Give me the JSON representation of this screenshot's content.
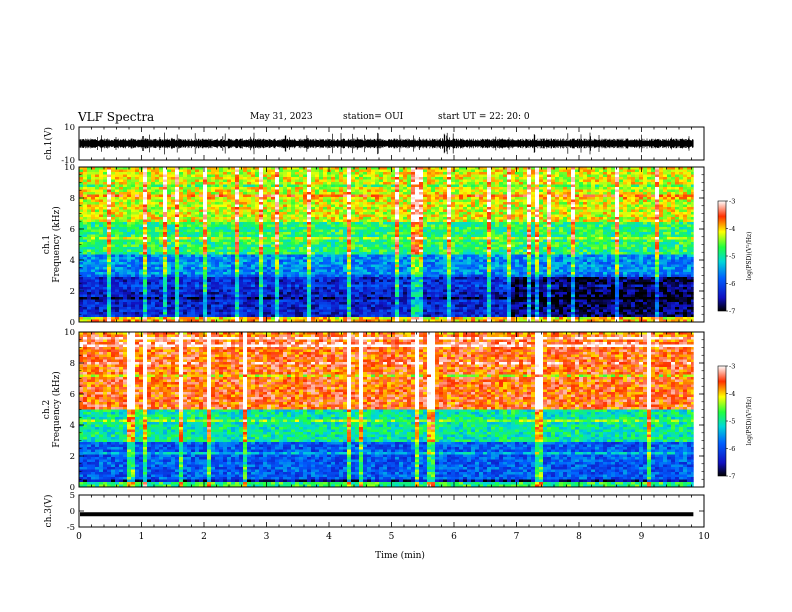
{
  "header": {
    "title": "VLF Spectra",
    "date": "May 31, 2023",
    "station": "station= OUI",
    "start": "start  UT  =   22: 20: 0"
  },
  "chart_data": [
    {
      "type": "line",
      "name": "ch1-waveform",
      "ylabel": "ch.1(V)",
      "ylim": [
        -10,
        10
      ],
      "y_ticks": [
        "10",
        "-10"
      ],
      "x_range_min": [
        0,
        9.83
      ],
      "series_color": "#000000"
    },
    {
      "type": "heatmap",
      "name": "ch1-spectrogram",
      "ylabel": "ch.1",
      "ylabel2": "Frequency  (kHz)",
      "ylim": [
        0,
        10
      ],
      "y_ticks": [
        "0",
        "2",
        "4",
        "6",
        "8",
        "10"
      ],
      "x_range_min": [
        0,
        9.83
      ],
      "colorbar": {
        "label": "log(PSD)(V²/Hz)",
        "range": [
          -7,
          -3
        ],
        "ticks": [
          "-3",
          "-4",
          "-5",
          "-6",
          "-7"
        ]
      },
      "dominant_bands": [
        {
          "freq_khz": [
            0,
            0.4
          ],
          "log_psd": -4.5
        },
        {
          "freq_khz": [
            0.4,
            3.0
          ],
          "log_psd": -6.3
        },
        {
          "freq_khz": [
            3.0,
            4.5
          ],
          "log_psd": -5.6
        },
        {
          "freq_khz": [
            4.5,
            6.5
          ],
          "log_psd": -4.8
        },
        {
          "freq_khz": [
            6.5,
            10
          ],
          "log_psd": -4.2
        }
      ]
    },
    {
      "type": "heatmap",
      "name": "ch2-spectrogram",
      "ylabel": "ch.2",
      "ylabel2": "Frequency  (kHz)",
      "ylim": [
        0,
        10
      ],
      "y_ticks": [
        "0",
        "2",
        "4",
        "6",
        "8",
        "10"
      ],
      "x_range_min": [
        0,
        9.83
      ],
      "colorbar": {
        "label": "log(PSD)(V²/Hz)",
        "range": [
          -7,
          -3
        ],
        "ticks": [
          "-3",
          "-4",
          "-5",
          "-6",
          "-7"
        ]
      },
      "dominant_bands": [
        {
          "freq_khz": [
            0,
            0.4
          ],
          "log_psd": -4.8
        },
        {
          "freq_khz": [
            0.4,
            3.0
          ],
          "log_psd": -5.9
        },
        {
          "freq_khz": [
            3.0,
            5.0
          ],
          "log_psd": -5.0
        },
        {
          "freq_khz": [
            5.0,
            10
          ],
          "log_psd": -3.6
        }
      ]
    },
    {
      "type": "line",
      "name": "ch3-waveform",
      "ylabel": "ch.3(V)",
      "ylim": [
        -5,
        5
      ],
      "y_ticks": [
        "5",
        "0",
        "-5"
      ],
      "x_range_min": [
        0,
        9.83
      ],
      "value": -1,
      "series_color": "#000000"
    }
  ],
  "x_axis": {
    "label": "Time  (min)",
    "range": [
      0,
      10
    ],
    "ticks": [
      "0",
      "1",
      "2",
      "3",
      "4",
      "5",
      "6",
      "7",
      "8",
      "9",
      "10"
    ]
  }
}
